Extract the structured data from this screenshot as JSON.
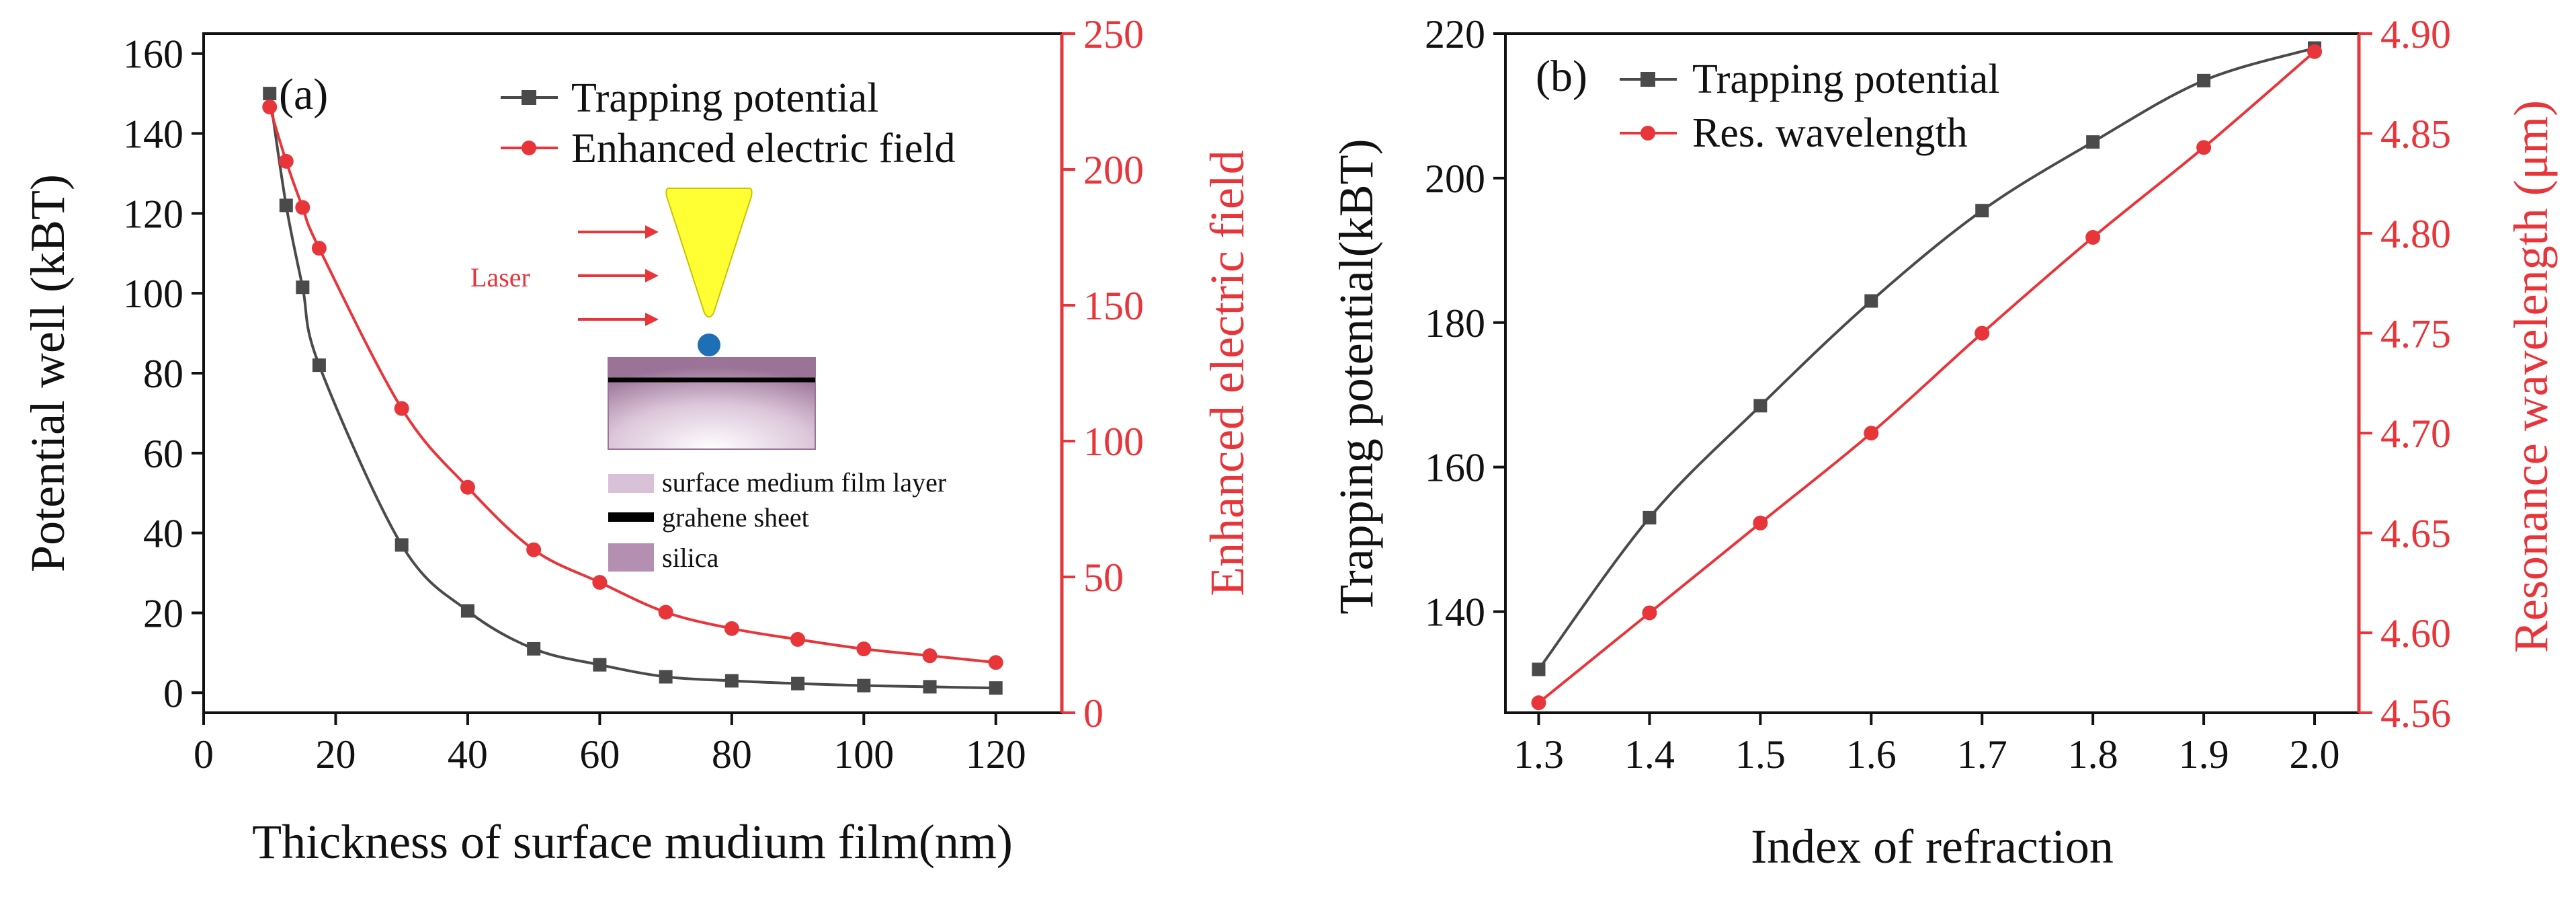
{
  "colors": {
    "series_black": "#4a4a4a",
    "series_red": "#e8353a",
    "axis_black": "#111111",
    "inset_text_red": "#e8353a",
    "tip_yellow": "#ffff33",
    "particle_blue": "#1f6fb5",
    "film_lilac": "#d9c2d7",
    "silica_purple": "#b58fb1"
  },
  "chart_data": [
    {
      "panel": "(a)",
      "type": "line",
      "xlabel": "Thickness of surface mudium film(nm)",
      "ylabel_left": "Potential well (kBT)",
      "ylabel_right": "Enhanced electric field",
      "xlim": [
        0,
        130
      ],
      "ylim_left": [
        -5,
        165
      ],
      "ylim_right": [
        0,
        250
      ],
      "xticks": [
        "0",
        "20",
        "40",
        "60",
        "80",
        "100",
        "120"
      ],
      "yticks_left": [
        "0",
        "20",
        "40",
        "60",
        "80",
        "100",
        "120",
        "140",
        "160"
      ],
      "yticks_right": [
        "0",
        "50",
        "100",
        "150",
        "200",
        "250"
      ],
      "series": [
        {
          "name": "Trapping potential",
          "axis": "left",
          "marker": "square",
          "x": [
            10,
            12.5,
            15,
            17.5,
            30,
            40,
            50,
            60,
            70,
            80,
            90,
            100,
            110,
            120
          ],
          "y": [
            150,
            122,
            101.5,
            82,
            37,
            20.5,
            11,
            7,
            4,
            3,
            2.3,
            1.8,
            1.5,
            1.2
          ]
        },
        {
          "name": "Enhanced electric field",
          "axis": "right",
          "marker": "circle",
          "x": [
            10,
            12.5,
            15,
            17.5,
            30,
            40,
            50,
            60,
            70,
            80,
            90,
            100,
            110,
            120
          ],
          "y": [
            223,
            203,
            186,
            171,
            112,
            83,
            60,
            48,
            37,
            31,
            27,
            23.5,
            21,
            18.5
          ]
        }
      ],
      "legend_position": "top-right",
      "inset": {
        "laser_label": "Laser",
        "legend": [
          "surface medium film layer",
          "grahene sheet",
          "silica"
        ]
      }
    },
    {
      "panel": "(b)",
      "type": "line",
      "xlabel": "Index of refraction",
      "ylabel_left": "Trapping potential(kBT)",
      "ylabel_right": "Resonance wavelength (μm)",
      "xlim": [
        1.27,
        2.04
      ],
      "ylim_left": [
        126,
        220
      ],
      "ylim_right": [
        4.56,
        4.9
      ],
      "xticks": [
        "1.3",
        "1.4",
        "1.5",
        "1.6",
        "1.7",
        "1.8",
        "1.9",
        "2.0"
      ],
      "yticks_left": [
        "140",
        "160",
        "180",
        "200",
        "220"
      ],
      "yticks_right": [
        "4.56",
        "4.60",
        "4.65",
        "4.70",
        "4.75",
        "4.80",
        "4.85",
        "4.90"
      ],
      "series": [
        {
          "name": "Trapping potential",
          "axis": "left",
          "marker": "square",
          "x": [
            1.3,
            1.4,
            1.5,
            1.6,
            1.7,
            1.8,
            1.9,
            2.0
          ],
          "y": [
            132,
            153,
            168.5,
            183,
            195.5,
            205,
            213.5,
            218
          ]
        },
        {
          "name": "Res. wavelength",
          "axis": "right",
          "marker": "circle",
          "x": [
            1.3,
            1.4,
            1.5,
            1.6,
            1.7,
            1.8,
            1.9,
            2.0
          ],
          "y": [
            4.565,
            4.61,
            4.655,
            4.7,
            4.75,
            4.798,
            4.843,
            4.891
          ]
        }
      ],
      "legend_position": "top-left"
    }
  ]
}
